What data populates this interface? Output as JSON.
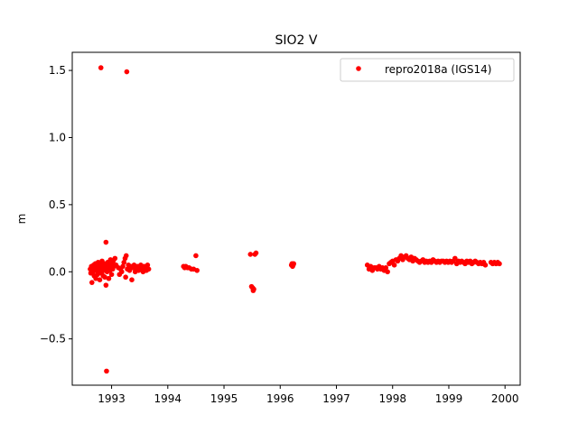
{
  "chart_data": {
    "type": "scatter",
    "title": "SIO2 V",
    "xlabel": "",
    "ylabel": "m",
    "xlim": [
      1992.3,
      2000.27
    ],
    "ylim": [
      -0.845,
      1.635
    ],
    "x_ticks": [
      1993,
      1994,
      1995,
      1996,
      1997,
      1998,
      1999,
      2000
    ],
    "x_tick_labels": [
      "1993",
      "1994",
      "1995",
      "1996",
      "1997",
      "1998",
      "1999",
      "2000"
    ],
    "y_ticks": [
      -0.5,
      0.0,
      0.5,
      1.0,
      1.5
    ],
    "y_tick_labels": [
      "−0.5",
      "0.0",
      "0.5",
      "1.0",
      "1.5"
    ],
    "grid": false,
    "legend_position": "top-right",
    "series": [
      {
        "name": "repro2018a (IGS14)",
        "color": "#ff0000",
        "marker": "circle",
        "points": [
          [
            1992.62,
            0.02
          ],
          [
            1992.63,
            -0.01
          ],
          [
            1992.64,
            0.04
          ],
          [
            1992.65,
            -0.08
          ],
          [
            1992.66,
            0.03
          ],
          [
            1992.67,
            0.0
          ],
          [
            1992.68,
            0.05
          ],
          [
            1992.69,
            -0.03
          ],
          [
            1992.7,
            0.02
          ],
          [
            1992.71,
            0.06
          ],
          [
            1992.72,
            -0.05
          ],
          [
            1992.73,
            0.01
          ],
          [
            1992.74,
            0.03
          ],
          [
            1992.75,
            -0.02
          ],
          [
            1992.76,
            0.07
          ],
          [
            1992.77,
            0.0
          ],
          [
            1992.78,
            0.04
          ],
          [
            1992.79,
            -0.06
          ],
          [
            1992.8,
            0.02
          ],
          [
            1992.81,
            1.52
          ],
          [
            1992.81,
            0.05
          ],
          [
            1992.82,
            -0.01
          ],
          [
            1992.83,
            0.08
          ],
          [
            1992.84,
            0.03
          ],
          [
            1992.85,
            -0.03
          ],
          [
            1992.86,
            0.01
          ],
          [
            1992.87,
            0.06
          ],
          [
            1992.88,
            -0.04
          ],
          [
            1992.89,
            0.02
          ],
          [
            1992.9,
            0.22
          ],
          [
            1992.9,
            -0.1
          ],
          [
            1992.91,
            0.04
          ],
          [
            1992.91,
            -0.74
          ],
          [
            1992.92,
            0.0
          ],
          [
            1992.93,
            0.07
          ],
          [
            1992.94,
            0.02
          ],
          [
            1992.95,
            -0.05
          ],
          [
            1992.96,
            0.05
          ],
          [
            1992.97,
            0.01
          ],
          [
            1992.98,
            0.09
          ],
          [
            1992.99,
            0.03
          ],
          [
            1993.0,
            -0.02
          ],
          [
            1993.01,
            0.06
          ],
          [
            1993.02,
            0.02
          ],
          [
            1993.03,
            0.08
          ],
          [
            1993.04,
            0.04
          ],
          [
            1993.06,
            0.1
          ],
          [
            1993.08,
            0.05
          ],
          [
            1993.12,
            0.03
          ],
          [
            1993.14,
            -0.02
          ],
          [
            1993.16,
            0.02
          ],
          [
            1993.18,
            0.0
          ],
          [
            1993.2,
            0.04
          ],
          [
            1993.22,
            0.07
          ],
          [
            1993.24,
            0.1
          ],
          [
            1993.25,
            -0.04
          ],
          [
            1993.26,
            0.12
          ],
          [
            1993.27,
            1.49
          ],
          [
            1993.28,
            0.02
          ],
          [
            1993.3,
            0.05
          ],
          [
            1993.32,
            0.01
          ],
          [
            1993.34,
            0.04
          ],
          [
            1993.36,
            -0.06
          ],
          [
            1993.38,
            0.03
          ],
          [
            1993.4,
            0.05
          ],
          [
            1993.42,
            0.0
          ],
          [
            1993.44,
            0.02
          ],
          [
            1993.46,
            0.04
          ],
          [
            1993.48,
            0.01
          ],
          [
            1993.5,
            0.03
          ],
          [
            1993.52,
            0.05
          ],
          [
            1993.54,
            0.02
          ],
          [
            1993.56,
            0.0
          ],
          [
            1993.58,
            0.04
          ],
          [
            1993.6,
            0.03
          ],
          [
            1993.62,
            0.01
          ],
          [
            1993.64,
            0.05
          ],
          [
            1993.66,
            0.02
          ],
          [
            1994.28,
            0.04
          ],
          [
            1994.3,
            0.03
          ],
          [
            1994.32,
            0.04
          ],
          [
            1994.35,
            0.03
          ],
          [
            1994.38,
            0.03
          ],
          [
            1994.42,
            0.02
          ],
          [
            1994.46,
            0.02
          ],
          [
            1994.5,
            0.12
          ],
          [
            1994.52,
            0.01
          ],
          [
            1995.47,
            0.13
          ],
          [
            1995.49,
            -0.11
          ],
          [
            1995.51,
            -0.12
          ],
          [
            1995.52,
            -0.14
          ],
          [
            1995.53,
            -0.13
          ],
          [
            1995.55,
            0.13
          ],
          [
            1995.57,
            0.14
          ],
          [
            1996.2,
            0.05
          ],
          [
            1996.21,
            0.06
          ],
          [
            1996.22,
            0.04
          ],
          [
            1996.23,
            0.05
          ],
          [
            1996.24,
            0.06
          ],
          [
            1997.55,
            0.05
          ],
          [
            1997.58,
            0.02
          ],
          [
            1997.61,
            0.04
          ],
          [
            1997.64,
            0.01
          ],
          [
            1997.67,
            0.03
          ],
          [
            1997.7,
            0.03
          ],
          [
            1997.73,
            0.02
          ],
          [
            1997.76,
            0.04
          ],
          [
            1997.79,
            0.02
          ],
          [
            1997.82,
            0.03
          ],
          [
            1997.85,
            0.01
          ],
          [
            1997.88,
            0.03
          ],
          [
            1997.91,
            0.0
          ],
          [
            1997.94,
            0.06
          ],
          [
            1997.97,
            0.07
          ],
          [
            1998.0,
            0.08
          ],
          [
            1998.03,
            0.05
          ],
          [
            1998.06,
            0.09
          ],
          [
            1998.09,
            0.08
          ],
          [
            1998.12,
            0.1
          ],
          [
            1998.15,
            0.12
          ],
          [
            1998.18,
            0.09
          ],
          [
            1998.21,
            0.11
          ],
          [
            1998.24,
            0.12
          ],
          [
            1998.27,
            0.1
          ],
          [
            1998.3,
            0.09
          ],
          [
            1998.33,
            0.11
          ],
          [
            1998.36,
            0.08
          ],
          [
            1998.39,
            0.1
          ],
          [
            1998.42,
            0.09
          ],
          [
            1998.45,
            0.08
          ],
          [
            1998.48,
            0.07
          ],
          [
            1998.51,
            0.08
          ],
          [
            1998.54,
            0.09
          ],
          [
            1998.57,
            0.07
          ],
          [
            1998.6,
            0.08
          ],
          [
            1998.63,
            0.07
          ],
          [
            1998.66,
            0.08
          ],
          [
            1998.69,
            0.07
          ],
          [
            1998.72,
            0.09
          ],
          [
            1998.75,
            0.08
          ],
          [
            1998.78,
            0.07
          ],
          [
            1998.81,
            0.08
          ],
          [
            1998.84,
            0.07
          ],
          [
            1998.87,
            0.08
          ],
          [
            1998.9,
            0.08
          ],
          [
            1998.93,
            0.07
          ],
          [
            1998.96,
            0.08
          ],
          [
            1998.99,
            0.07
          ],
          [
            1999.02,
            0.08
          ],
          [
            1999.05,
            0.07
          ],
          [
            1999.08,
            0.08
          ],
          [
            1999.11,
            0.1
          ],
          [
            1999.14,
            0.06
          ],
          [
            1999.17,
            0.08
          ],
          [
            1999.2,
            0.07
          ],
          [
            1999.23,
            0.08
          ],
          [
            1999.26,
            0.07
          ],
          [
            1999.29,
            0.06
          ],
          [
            1999.32,
            0.08
          ],
          [
            1999.35,
            0.07
          ],
          [
            1999.38,
            0.08
          ],
          [
            1999.41,
            0.06
          ],
          [
            1999.44,
            0.07
          ],
          [
            1999.47,
            0.08
          ],
          [
            1999.5,
            0.07
          ],
          [
            1999.53,
            0.06
          ],
          [
            1999.56,
            0.07
          ],
          [
            1999.59,
            0.06
          ],
          [
            1999.62,
            0.07
          ],
          [
            1999.65,
            0.05
          ],
          [
            1999.75,
            0.07
          ],
          [
            1999.78,
            0.06
          ],
          [
            1999.81,
            0.07
          ],
          [
            1999.84,
            0.06
          ],
          [
            1999.87,
            0.07
          ],
          [
            1999.9,
            0.06
          ]
        ]
      }
    ]
  }
}
